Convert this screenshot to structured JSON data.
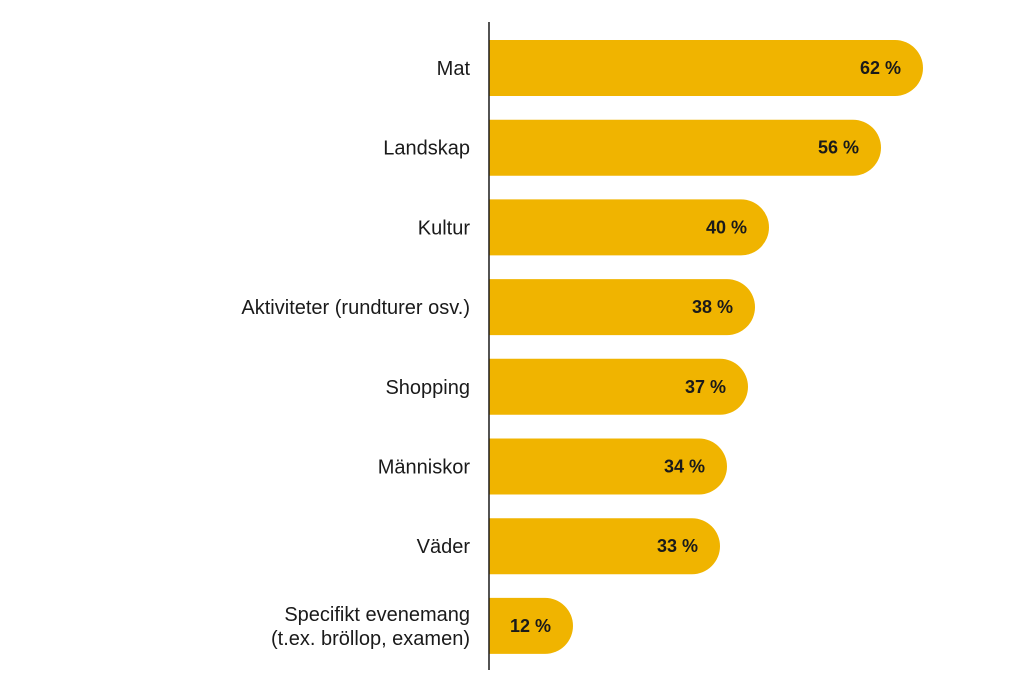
{
  "colors": {
    "bar": "#f0b400",
    "axis": "#1a1a1a",
    "text": "#1a1a1a",
    "background": "#ffffff"
  },
  "chart_data": {
    "type": "bar",
    "orientation": "horizontal",
    "title": "",
    "xlabel": "",
    "ylabel": "",
    "grid": false,
    "legend": "none",
    "xlim": [
      0,
      62
    ],
    "value_suffix": " %",
    "categories": [
      [
        "Mat"
      ],
      [
        "Landskap"
      ],
      [
        "Kultur"
      ],
      [
        "Aktiviteter (rundturer osv.)"
      ],
      [
        "Shopping"
      ],
      [
        "Människor"
      ],
      [
        "Väder"
      ],
      [
        "Specifikt evenemang",
        "(t.ex. bröllop, examen)"
      ]
    ],
    "values": [
      62,
      56,
      40,
      38,
      37,
      34,
      33,
      12
    ],
    "value_labels": [
      "62 %",
      "56 %",
      "40 %",
      "38 %",
      "37 %",
      "34 %",
      "33 %",
      "12 %"
    ]
  }
}
